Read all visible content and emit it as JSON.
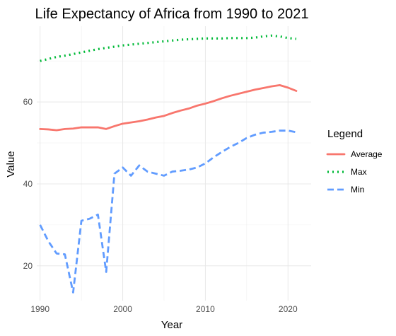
{
  "chart_data": {
    "type": "line",
    "title": "Life Expectancy of Africa from 1990 to 2021",
    "xlabel": "Year",
    "ylabel": "Value",
    "xlim": [
      1989.6,
      2022.8
    ],
    "ylim": [
      11.5,
      78.5
    ],
    "x_ticks": [
      1990,
      2000,
      2010,
      2020
    ],
    "y_ticks": [
      20,
      40,
      60
    ],
    "grid": true,
    "legend_title": "Legend",
    "legend_position": "right",
    "x": [
      1990,
      1991,
      1992,
      1993,
      1994,
      1995,
      1996,
      1997,
      1998,
      1999,
      2000,
      2001,
      2002,
      2003,
      2004,
      2005,
      2006,
      2007,
      2008,
      2009,
      2010,
      2011,
      2012,
      2013,
      2014,
      2015,
      2016,
      2017,
      2018,
      2019,
      2020,
      2021
    ],
    "series": [
      {
        "name": "Average",
        "color": "#F8766D",
        "dash": "solid",
        "values": [
          53.4,
          53.3,
          53.1,
          53.4,
          53.5,
          53.8,
          53.8,
          53.8,
          53.4,
          54.1,
          54.7,
          55.0,
          55.3,
          55.7,
          56.2,
          56.6,
          57.3,
          57.9,
          58.4,
          59.1,
          59.6,
          60.2,
          60.9,
          61.5,
          62.0,
          62.5,
          63.0,
          63.4,
          63.8,
          64.1,
          63.5,
          62.7
        ]
      },
      {
        "name": "Max",
        "color": "#00BA38",
        "dash": "dotted",
        "values": [
          70.0,
          70.5,
          71.0,
          71.3,
          71.7,
          72.1,
          72.5,
          72.9,
          73.2,
          73.5,
          73.8,
          74.0,
          74.2,
          74.4,
          74.6,
          74.8,
          75.0,
          75.2,
          75.3,
          75.4,
          75.5,
          75.5,
          75.5,
          75.6,
          75.6,
          75.6,
          75.7,
          76.0,
          76.2,
          76.0,
          75.6,
          75.4
        ]
      },
      {
        "name": "Min",
        "color": "#619CFF",
        "dash": "dashed",
        "values": [
          30.0,
          26.0,
          23.0,
          22.8,
          13.5,
          31.0,
          31.5,
          32.5,
          18.5,
          42.5,
          44.0,
          42.0,
          44.5,
          43.0,
          42.5,
          42.0,
          43.0,
          43.2,
          43.5,
          44.0,
          45.0,
          46.5,
          47.8,
          49.0,
          50.0,
          51.2,
          52.0,
          52.5,
          52.7,
          53.0,
          53.0,
          52.6
        ]
      }
    ]
  }
}
